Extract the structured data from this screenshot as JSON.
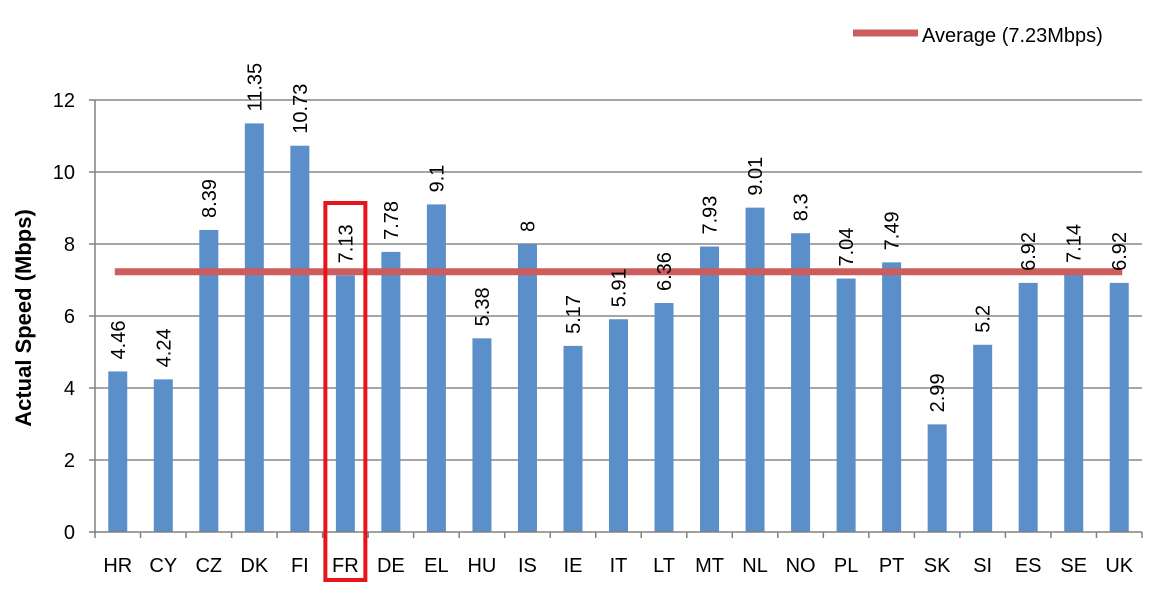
{
  "chart_data": {
    "type": "bar",
    "categories": [
      "HR",
      "CY",
      "CZ",
      "DK",
      "FI",
      "FR",
      "DE",
      "EL",
      "HU",
      "IS",
      "IE",
      "IT",
      "LT",
      "MT",
      "NL",
      "NO",
      "PL",
      "PT",
      "SK",
      "SI",
      "ES",
      "SE",
      "UK"
    ],
    "values": [
      4.46,
      4.24,
      8.39,
      11.35,
      10.73,
      7.13,
      7.78,
      9.1,
      5.38,
      8,
      5.17,
      5.91,
      6.36,
      7.93,
      9.01,
      8.3,
      7.04,
      7.49,
      2.99,
      5.2,
      6.92,
      7.14,
      6.92
    ],
    "value_labels": [
      "4.46",
      "4.24",
      "8.39",
      "11.35",
      "10.73",
      "7.13",
      "7.78",
      "9.1",
      "5.38",
      "8",
      "5.17",
      "5.91",
      "6.36",
      "7.93",
      "9.01",
      "8.3",
      "7.04",
      "7.49",
      "2.99",
      "5.2",
      "6.92",
      "7.14",
      "6.92"
    ],
    "ylabel": "Actual Speed (Mbps)",
    "ylim": [
      0,
      12
    ],
    "yticks": [
      0,
      2,
      4,
      6,
      8,
      10,
      12
    ],
    "grid": true,
    "legend_position": "top-right",
    "average": {
      "value": 7.23,
      "label": "Average (7.23Mbps)"
    },
    "highlighted_category": "FR",
    "colors": {
      "bar": "#5b8fc9",
      "average_line": "#cd5c5c",
      "highlight_box": "#e8141b",
      "grid": "#a6a6a6",
      "axis": "#808080"
    }
  }
}
